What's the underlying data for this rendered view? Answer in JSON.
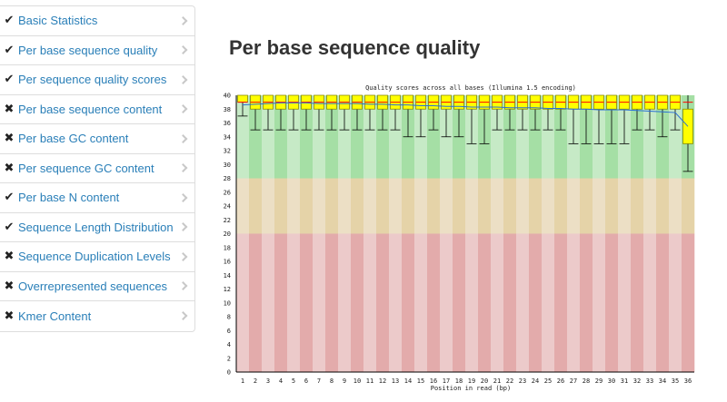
{
  "sidebar": {
    "items": [
      {
        "status": "pass",
        "status_glyph": "✔",
        "label": "Basic Statistics"
      },
      {
        "status": "pass",
        "status_glyph": "✔",
        "label": "Per base sequence quality"
      },
      {
        "status": "pass",
        "status_glyph": "✔",
        "label": "Per sequence quality scores"
      },
      {
        "status": "fail",
        "status_glyph": "✖",
        "label": "Per base sequence content"
      },
      {
        "status": "fail",
        "status_glyph": "✖",
        "label": "Per base GC content"
      },
      {
        "status": "fail",
        "status_glyph": "✖",
        "label": "Per sequence GC content"
      },
      {
        "status": "pass",
        "status_glyph": "✔",
        "label": "Per base N content"
      },
      {
        "status": "pass",
        "status_glyph": "✔",
        "label": "Sequence Length Distribution"
      },
      {
        "status": "fail",
        "status_glyph": "✖",
        "label": "Sequence Duplication Levels"
      },
      {
        "status": "fail",
        "status_glyph": "✖",
        "label": "Overrepresented sequences"
      },
      {
        "status": "fail",
        "status_glyph": "✖",
        "label": "Kmer Content"
      }
    ]
  },
  "main": {
    "title": "Per base sequence quality"
  },
  "chart_data": {
    "type": "boxplot",
    "title": "Quality scores across all bases (Illumina 1.5 encoding)",
    "xlabel": "Position in read (bp)",
    "ylabel": "",
    "ylim": [
      0,
      40
    ],
    "yticks": [
      0,
      2,
      4,
      6,
      8,
      10,
      12,
      14,
      16,
      18,
      20,
      22,
      24,
      26,
      28,
      30,
      32,
      34,
      36,
      38,
      40
    ],
    "categories": [
      "1",
      "2",
      "3",
      "4",
      "5",
      "6",
      "7",
      "8",
      "9",
      "10",
      "11",
      "12",
      "13",
      "14",
      "15",
      "16",
      "17",
      "18",
      "19",
      "20",
      "21",
      "22",
      "23",
      "24",
      "25",
      "26",
      "27",
      "28",
      "29",
      "30",
      "31",
      "32",
      "33",
      "34",
      "35",
      "36"
    ],
    "quality_bands": [
      {
        "from": 28,
        "to": 40,
        "zone": "good",
        "color_a": "#c6eac6",
        "color_b": "#a5dfa5"
      },
      {
        "from": 20,
        "to": 28,
        "zone": "reasonable",
        "color_a": "#ecdfc5",
        "color_b": "#e5d3a8"
      },
      {
        "from": 0,
        "to": 20,
        "zone": "poor",
        "color_a": "#eccaca",
        "color_b": "#e3abab"
      }
    ],
    "colors": {
      "box": "#ffff00",
      "box_edge": "#8a8a00",
      "median": "#ff0000",
      "mean_line": "#2a6fd6"
    },
    "series": {
      "mean": [
        38.6,
        38.7,
        38.8,
        38.9,
        38.9,
        38.9,
        38.8,
        38.8,
        38.8,
        38.8,
        38.7,
        38.7,
        38.6,
        38.6,
        38.5,
        38.5,
        38.4,
        38.4,
        38.3,
        38.3,
        38.3,
        38.2,
        38.2,
        38.2,
        38.1,
        38.1,
        38.0,
        38.0,
        37.9,
        37.9,
        37.9,
        37.8,
        37.7,
        37.6,
        37.5,
        35.5
      ],
      "median": [
        39,
        39,
        39,
        39,
        39,
        39,
        39,
        39,
        39,
        39,
        39,
        39,
        39,
        39,
        39,
        39,
        39,
        39,
        39,
        39,
        39,
        39,
        39,
        39,
        39,
        39,
        39,
        39,
        39,
        39,
        39,
        39,
        39,
        39,
        39,
        39
      ],
      "q1": [
        39,
        38,
        38,
        38,
        38,
        38,
        38,
        38,
        38,
        38,
        38,
        38,
        38,
        38,
        38,
        38,
        38,
        38,
        38,
        38,
        38,
        38,
        38,
        38,
        38,
        38,
        38,
        38,
        38,
        38,
        38,
        38,
        38,
        38,
        38,
        33
      ],
      "q3": [
        40,
        40,
        40,
        40,
        40,
        40,
        40,
        40,
        40,
        40,
        40,
        40,
        40,
        40,
        40,
        40,
        40,
        40,
        40,
        40,
        40,
        40,
        40,
        40,
        40,
        40,
        40,
        40,
        40,
        40,
        40,
        40,
        40,
        40,
        40,
        38
      ],
      "whisker_low": [
        37,
        35,
        35,
        35,
        35,
        35,
        35,
        35,
        35,
        35,
        35,
        35,
        35,
        34,
        34,
        35,
        34,
        34,
        33,
        33,
        35,
        35,
        35,
        35,
        35,
        35,
        33,
        33,
        33,
        33,
        33,
        35,
        35,
        34,
        35,
        29
      ],
      "whisker_high": [
        40,
        40,
        40,
        40,
        40,
        40,
        40,
        40,
        40,
        40,
        40,
        40,
        40,
        40,
        40,
        40,
        40,
        40,
        40,
        40,
        40,
        40,
        40,
        40,
        40,
        40,
        40,
        40,
        40,
        40,
        40,
        40,
        40,
        40,
        40,
        40
      ]
    }
  }
}
